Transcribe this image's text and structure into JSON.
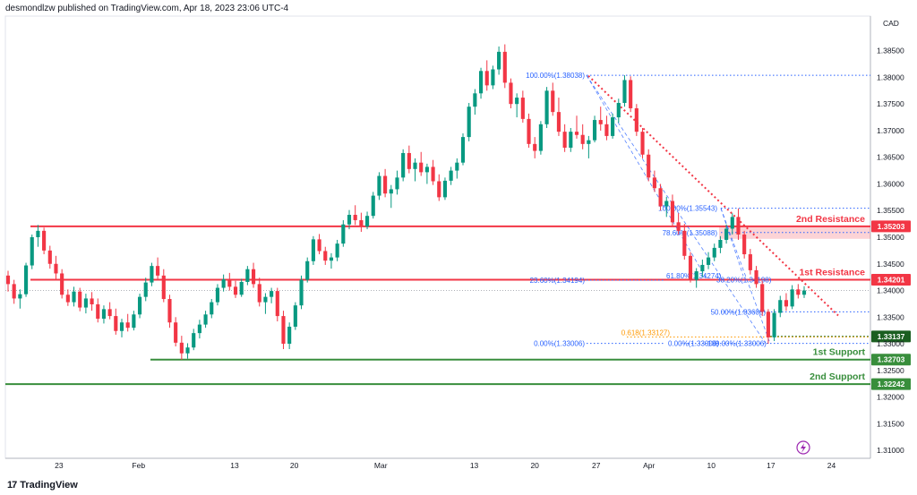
{
  "header": {
    "text": "desmondlzw published on TradingView.com, Apr 18, 2023 23:06 UTC-4"
  },
  "footer": {
    "brand": "TradingView",
    "logo": "17"
  },
  "chart_data": {
    "type": "candlestick",
    "currency_label": "CAD",
    "ylim": [
      1.3085,
      1.3915
    ],
    "y_ticks": [
      "1.38500",
      "1.38000",
      "1.37500",
      "1.37000",
      "1.36500",
      "1.36000",
      "1.35500",
      "1.35000",
      "1.34500",
      "1.34000",
      "1.33500",
      "1.33000",
      "1.32500",
      "1.32000",
      "1.31500",
      "1.31000"
    ],
    "x_ticks": [
      "23",
      "Feb",
      "13",
      "20",
      "Mar",
      "13",
      "20",
      "27",
      "Apr",
      "10",
      "17",
      "24"
    ],
    "last_price": 1.34,
    "candles_ohlc": [
      [
        1.3428,
        1.3437,
        1.3398,
        1.3412
      ],
      [
        1.3412,
        1.342,
        1.3375,
        1.3385
      ],
      [
        1.3385,
        1.3402,
        1.3366,
        1.3393
      ],
      [
        1.3393,
        1.3452,
        1.3388,
        1.3447
      ],
      [
        1.3447,
        1.3505,
        1.344,
        1.35
      ],
      [
        1.35,
        1.3523,
        1.3482,
        1.3512
      ],
      [
        1.3512,
        1.3518,
        1.3468,
        1.3475
      ],
      [
        1.3475,
        1.3484,
        1.3441,
        1.345
      ],
      [
        1.345,
        1.3465,
        1.342,
        1.3432
      ],
      [
        1.3432,
        1.344,
        1.3385,
        1.3392
      ],
      [
        1.3392,
        1.3402,
        1.3371,
        1.3378
      ],
      [
        1.3378,
        1.3407,
        1.337,
        1.3398
      ],
      [
        1.3398,
        1.3405,
        1.3361,
        1.3368
      ],
      [
        1.3368,
        1.3394,
        1.3357,
        1.3385
      ],
      [
        1.3385,
        1.3397,
        1.3362,
        1.3374
      ],
      [
        1.3374,
        1.3385,
        1.334,
        1.3347
      ],
      [
        1.3347,
        1.3372,
        1.3338,
        1.3365
      ],
      [
        1.3365,
        1.3378,
        1.3346,
        1.3352
      ],
      [
        1.3352,
        1.3366,
        1.3317,
        1.3324
      ],
      [
        1.3324,
        1.3347,
        1.3312,
        1.334
      ],
      [
        1.334,
        1.3356,
        1.3323,
        1.333
      ],
      [
        1.333,
        1.3362,
        1.3325,
        1.3355
      ],
      [
        1.3355,
        1.3394,
        1.3348,
        1.3388
      ],
      [
        1.3388,
        1.3424,
        1.338,
        1.3415
      ],
      [
        1.3415,
        1.3452,
        1.3408,
        1.3446
      ],
      [
        1.3446,
        1.3462,
        1.342,
        1.3428
      ],
      [
        1.3428,
        1.344,
        1.3378,
        1.3384
      ],
      [
        1.3384,
        1.3392,
        1.333,
        1.334
      ],
      [
        1.334,
        1.335,
        1.3295,
        1.3302
      ],
      [
        1.3302,
        1.3315,
        1.327,
        1.3282
      ],
      [
        1.3282,
        1.3301,
        1.3272,
        1.3293
      ],
      [
        1.3293,
        1.3328,
        1.3288,
        1.332
      ],
      [
        1.332,
        1.3345,
        1.331,
        1.3336
      ],
      [
        1.3336,
        1.3362,
        1.333,
        1.3355
      ],
      [
        1.3355,
        1.3384,
        1.3348,
        1.3378
      ],
      [
        1.3378,
        1.3412,
        1.3372,
        1.3405
      ],
      [
        1.3405,
        1.343,
        1.3398,
        1.3421
      ],
      [
        1.3421,
        1.3433,
        1.34,
        1.3407
      ],
      [
        1.3407,
        1.3418,
        1.3386,
        1.3392
      ],
      [
        1.3392,
        1.3422,
        1.3388,
        1.3416
      ],
      [
        1.3416,
        1.3446,
        1.341,
        1.344
      ],
      [
        1.344,
        1.3452,
        1.3405,
        1.3412
      ],
      [
        1.3412,
        1.3424,
        1.337,
        1.3378
      ],
      [
        1.3378,
        1.3395,
        1.3356,
        1.3388
      ],
      [
        1.3388,
        1.3405,
        1.3376,
        1.3399
      ],
      [
        1.3399,
        1.3405,
        1.3342,
        1.3352
      ],
      [
        1.3352,
        1.3362,
        1.329,
        1.33
      ],
      [
        1.33,
        1.334,
        1.329,
        1.3332
      ],
      [
        1.3332,
        1.3378,
        1.3326,
        1.3372
      ],
      [
        1.3372,
        1.3428,
        1.3365,
        1.342
      ],
      [
        1.342,
        1.3462,
        1.3415,
        1.3455
      ],
      [
        1.3455,
        1.3502,
        1.3448,
        1.3496
      ],
      [
        1.3496,
        1.3506,
        1.3468,
        1.3474
      ],
      [
        1.3474,
        1.3482,
        1.3448,
        1.3456
      ],
      [
        1.3456,
        1.347,
        1.3441,
        1.3462
      ],
      [
        1.3462,
        1.3495,
        1.3455,
        1.3488
      ],
      [
        1.3488,
        1.3532,
        1.3482,
        1.3524
      ],
      [
        1.3524,
        1.3551,
        1.3515,
        1.3542
      ],
      [
        1.3542,
        1.356,
        1.3523,
        1.3532
      ],
      [
        1.3532,
        1.3546,
        1.351,
        1.352
      ],
      [
        1.352,
        1.3548,
        1.3515,
        1.354
      ],
      [
        1.354,
        1.3585,
        1.3535,
        1.3578
      ],
      [
        1.3578,
        1.3622,
        1.357,
        1.3615
      ],
      [
        1.3615,
        1.3628,
        1.3575,
        1.3582
      ],
      [
        1.3582,
        1.3598,
        1.3555,
        1.359
      ],
      [
        1.359,
        1.3625,
        1.358,
        1.3612
      ],
      [
        1.3612,
        1.3665,
        1.3605,
        1.3658
      ],
      [
        1.3658,
        1.3672,
        1.362,
        1.3628
      ],
      [
        1.3628,
        1.3648,
        1.3605,
        1.364
      ],
      [
        1.364,
        1.366,
        1.3615,
        1.3622
      ],
      [
        1.3622,
        1.3638,
        1.36,
        1.3632
      ],
      [
        1.3632,
        1.3645,
        1.3598,
        1.3605
      ],
      [
        1.3605,
        1.3618,
        1.3568,
        1.3575
      ],
      [
        1.3575,
        1.3612,
        1.357,
        1.3606
      ],
      [
        1.3606,
        1.3632,
        1.3598,
        1.3625
      ],
      [
        1.3625,
        1.3648,
        1.361,
        1.364
      ],
      [
        1.364,
        1.3695,
        1.3635,
        1.3688
      ],
      [
        1.3688,
        1.3752,
        1.368,
        1.3745
      ],
      [
        1.3745,
        1.3778,
        1.373,
        1.377
      ],
      [
        1.377,
        1.3818,
        1.376,
        1.3812
      ],
      [
        1.3812,
        1.3832,
        1.3775,
        1.3785
      ],
      [
        1.3785,
        1.3822,
        1.3778,
        1.3815
      ],
      [
        1.3815,
        1.3858,
        1.3805,
        1.3848
      ],
      [
        1.3848,
        1.3862,
        1.378,
        1.379
      ],
      [
        1.379,
        1.3798,
        1.3742,
        1.375
      ],
      [
        1.375,
        1.377,
        1.3725,
        1.3762
      ],
      [
        1.3762,
        1.3775,
        1.3715,
        1.3722
      ],
      [
        1.3722,
        1.3732,
        1.3668,
        1.3675
      ],
      [
        1.3675,
        1.3688,
        1.3648,
        1.3662
      ],
      [
        1.3662,
        1.3718,
        1.3655,
        1.3712
      ],
      [
        1.3712,
        1.3782,
        1.3705,
        1.3775
      ],
      [
        1.3775,
        1.379,
        1.3728,
        1.3735
      ],
      [
        1.3735,
        1.3762,
        1.369,
        1.3698
      ],
      [
        1.3698,
        1.3712,
        1.366,
        1.3668
      ],
      [
        1.3668,
        1.3705,
        1.366,
        1.3698
      ],
      [
        1.3698,
        1.3728,
        1.3685,
        1.3692
      ],
      [
        1.3692,
        1.3712,
        1.3665,
        1.3675
      ],
      [
        1.3675,
        1.369,
        1.3648,
        1.3682
      ],
      [
        1.3682,
        1.3728,
        1.3678,
        1.372
      ],
      [
        1.372,
        1.3745,
        1.37,
        1.3712
      ],
      [
        1.3712,
        1.3728,
        1.3682,
        1.369
      ],
      [
        1.369,
        1.3732,
        1.3685,
        1.3725
      ],
      [
        1.3725,
        1.376,
        1.3715,
        1.3752
      ],
      [
        1.3752,
        1.3804,
        1.3745,
        1.3795
      ],
      [
        1.3795,
        1.3802,
        1.3735,
        1.3742
      ],
      [
        1.3742,
        1.375,
        1.369,
        1.3698
      ],
      [
        1.3698,
        1.3705,
        1.3648,
        1.3655
      ],
      [
        1.3655,
        1.3665,
        1.3605,
        1.3612
      ],
      [
        1.3612,
        1.3625,
        1.3585,
        1.3592
      ],
      [
        1.3592,
        1.36,
        1.355,
        1.3558
      ],
      [
        1.3558,
        1.3576,
        1.3538,
        1.3568
      ],
      [
        1.3568,
        1.358,
        1.352,
        1.3528
      ],
      [
        1.3528,
        1.3545,
        1.3505,
        1.3512
      ],
      [
        1.3512,
        1.3525,
        1.3458,
        1.3465
      ],
      [
        1.3465,
        1.3472,
        1.3415,
        1.342
      ],
      [
        1.342,
        1.3442,
        1.3405,
        1.3436
      ],
      [
        1.3436,
        1.3458,
        1.3425,
        1.3448
      ],
      [
        1.3448,
        1.3472,
        1.344,
        1.3462
      ],
      [
        1.3462,
        1.3488,
        1.3455,
        1.348
      ],
      [
        1.348,
        1.3502,
        1.347,
        1.3495
      ],
      [
        1.3495,
        1.3524,
        1.3488,
        1.3516
      ],
      [
        1.3516,
        1.3545,
        1.3505,
        1.3538
      ],
      [
        1.3538,
        1.3554,
        1.3495,
        1.3505
      ],
      [
        1.3505,
        1.3512,
        1.346,
        1.3468
      ],
      [
        1.3468,
        1.3478,
        1.343,
        1.3438
      ],
      [
        1.3438,
        1.3446,
        1.3405,
        1.3412
      ],
      [
        1.3412,
        1.3418,
        1.3352,
        1.336
      ],
      [
        1.336,
        1.3365,
        1.33,
        1.3312
      ],
      [
        1.3312,
        1.3365,
        1.3305,
        1.3358
      ],
      [
        1.3358,
        1.339,
        1.335,
        1.3382
      ],
      [
        1.3382,
        1.3395,
        1.3362,
        1.337
      ],
      [
        1.337,
        1.341,
        1.3365,
        1.3402
      ],
      [
        1.3402,
        1.3412,
        1.3385,
        1.3392
      ],
      [
        1.3392,
        1.3408,
        1.3386,
        1.34
      ]
    ],
    "horizontal_levels": [
      {
        "name": "2nd Resistance",
        "price": "1.35203",
        "value": 1.35203,
        "color": "#f23645"
      },
      {
        "name": "1st Resistance",
        "price": "1.34201",
        "value": 1.34201,
        "color": "#f23645"
      },
      {
        "name": "",
        "price": "1.33137",
        "value": 1.33137,
        "color": "#1b5e20"
      },
      {
        "name": "1st Support",
        "price": "1.32703",
        "value": 1.32703,
        "color": "#388e3c"
      },
      {
        "name": "2nd Support",
        "price": "1.32242",
        "value": 1.32242,
        "color": "#388e3c"
      }
    ],
    "fib_labels": [
      {
        "text": "100.00%(1.38038)",
        "value": 1.38038
      },
      {
        "text": "23.60%(1.34194)",
        "value": 1.34194
      },
      {
        "text": "0.00%(1.33006)",
        "value": 1.33006
      },
      {
        "text": "100.00%(1.35543)",
        "value": 1.35543
      },
      {
        "text": "78.60%(1.35088)",
        "value": 1.35088
      },
      {
        "text": "61.80%(1.34274)",
        "value": 1.34274
      },
      {
        "text": "38.20%(1.34198)",
        "value": 1.34198
      },
      {
        "text": "50.00%(1.33600)",
        "value": 1.336
      },
      {
        "text": "0.00%(1.33006)",
        "value": 1.33006
      },
      {
        "text": "100.00%(1.33006)",
        "value": 1.33006
      }
    ],
    "retracement_label": {
      "text": "0.618(1.33127)",
      "value": 1.33127
    },
    "colors": {
      "up": "#089981",
      "down": "#f23645",
      "resistance": "#f23645",
      "support": "#388e3c",
      "fib": "#2962ff",
      "golden": "#ff9800"
    }
  }
}
